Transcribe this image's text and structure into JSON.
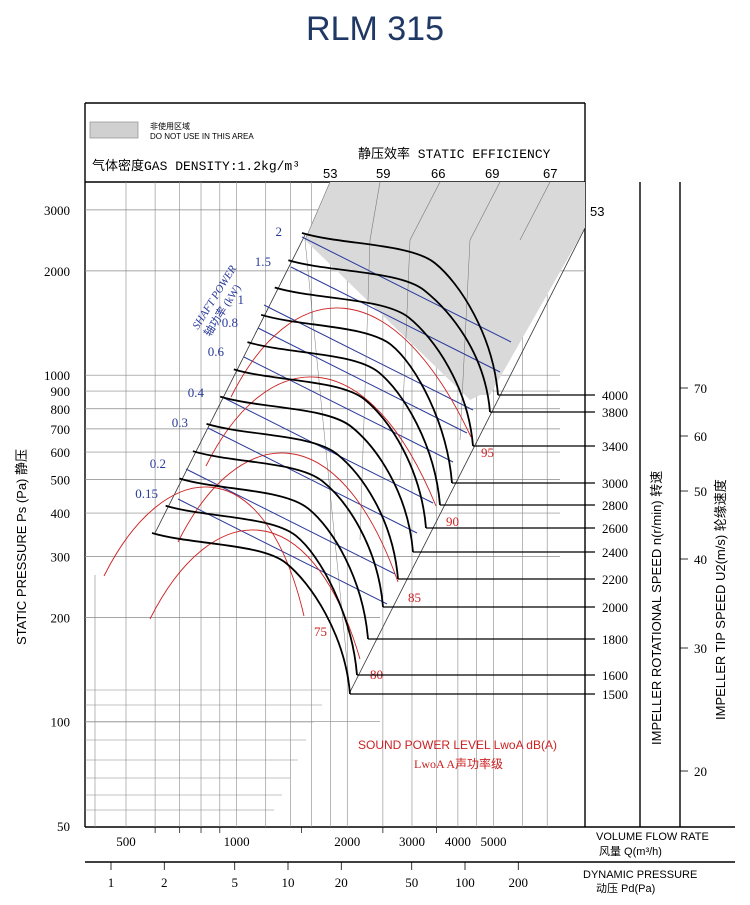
{
  "title": "RLM 315",
  "notice": {
    "cn": "非使用区域",
    "en": "DO NOT USE IN THIS AREA"
  },
  "gas_density": "气体密度GAS DENSITY:1.2kg/m³",
  "colors": {
    "title": "#1f3864",
    "blue": "#2a3a9a",
    "red": "#cc2222",
    "black": "#000000",
    "shade": "#d9d9d9"
  },
  "chart_data": {
    "type": "line",
    "title": "RLM 315",
    "static_efficiency": {
      "label": "静压效率 STATIC EFFICIENCY",
      "values": [
        "53",
        "59",
        "66",
        "69",
        "67",
        "53"
      ]
    },
    "y_left": {
      "label": "STATIC PRESSURE Ps (Pa) 静压",
      "scale": "log",
      "range": [
        50,
        3000
      ],
      "ticks": [
        "3000",
        "2000",
        "1000",
        "900",
        "800",
        "700",
        "600",
        "500",
        "400",
        "300",
        "200",
        "100",
        "50"
      ]
    },
    "x_flow": {
      "label": "VOLUME FLOW RATE",
      "label_cn": "风量 Q(m³/h)",
      "scale": "log",
      "ticks": [
        "500",
        "1000",
        "2000",
        "3000",
        "4000",
        "5000"
      ]
    },
    "x_dynamic": {
      "label": "DYNAMIC PRESSURE",
      "label_cn": "动压 Pd(Pa)",
      "scale": "log",
      "ticks": [
        "1",
        "2",
        "5",
        "10",
        "20",
        "50",
        "100",
        "200"
      ]
    },
    "rotational_speed": {
      "label": "IMPELLER ROTATIONAL SPEED n(r/min) 转速",
      "values": [
        "4000",
        "3800",
        "3400",
        "3000",
        "2800",
        "2600",
        "2400",
        "2200",
        "2000",
        "1800",
        "1600",
        "1500"
      ]
    },
    "tip_speed": {
      "label": "IMPELLER TIP SPEED U2(m/s) 轮缘速度",
      "ticks": [
        "70",
        "60",
        "50",
        "40",
        "30",
        "20"
      ]
    },
    "shaft_power": {
      "label": "SHAFT POWER",
      "label_cn": "轴功率 (kW)",
      "values": [
        "2",
        "1.5",
        "1",
        "0.8",
        "0.6",
        "0.4",
        "0.3",
        "0.2",
        "0.15"
      ]
    },
    "sound_power": {
      "label": "SOUND POWER LEVEL LwoA dB(A)",
      "label_cn": "LwoA A声功率级",
      "values": [
        "95",
        "90",
        "85",
        "80",
        "75"
      ]
    }
  }
}
